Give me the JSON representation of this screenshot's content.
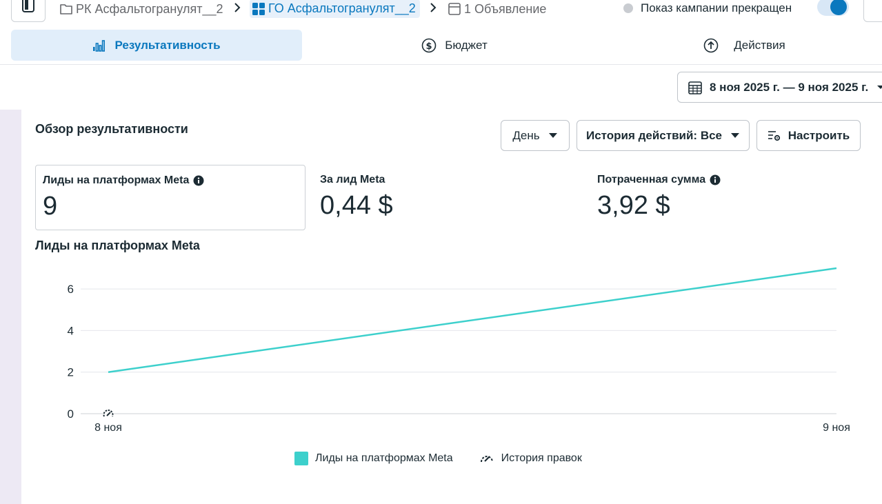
{
  "breadcrumb": {
    "campaign": "РК Асфальтогранулят__2",
    "adset": "ГО Асфальтогранулят__2",
    "ad": "1 Объявление"
  },
  "status": {
    "text": "Показ кампании прекращен",
    "dot_color": "#c9ccd1",
    "toggle_on": true
  },
  "tabs": [
    {
      "label": "Результативность",
      "active": true,
      "icon": "bar-chart-icon"
    },
    {
      "label": "Бюджет",
      "active": false,
      "icon": "dollar-circle-icon"
    },
    {
      "label": "Действия",
      "active": false,
      "icon": "arrow-up-circle-icon"
    }
  ],
  "date_range": "8 ноя 2025 г. — 9 ноя 2025 г.",
  "overview": {
    "title": "Обзор результативности",
    "period_select": "День",
    "history_select": "История действий: Все",
    "configure_label": "Настроить"
  },
  "metrics": [
    {
      "label": "Лиды на платформах Meta",
      "value": "9",
      "info": true,
      "selected": true
    },
    {
      "label": "За лид Meta",
      "value": "0,44 $",
      "info": false,
      "selected": false
    },
    {
      "label": "Потраченная сумма",
      "value": "3,92 $",
      "info": true,
      "selected": false
    }
  ],
  "chart_title": "Лиды на платформах Meta",
  "chart_data": {
    "type": "line",
    "x": [
      "8 ноя",
      "9 ноя"
    ],
    "series": [
      {
        "name": "Лиды на платформах Meta",
        "values": [
          2,
          7
        ],
        "color": "#3dd0cc"
      }
    ],
    "ylim": [
      0,
      7
    ],
    "yticks": [
      0,
      2,
      4,
      6
    ],
    "grid": true,
    "legend_position": "bottom-center",
    "annotations": [
      {
        "x": "8 ноя",
        "icon": "edit-history-icon"
      }
    ]
  },
  "legend": {
    "series_label": "Лиды на платформах Meta",
    "history_label": "История правок"
  },
  "colors": {
    "accent": "#0a78be",
    "active_tab_bg": "#e1eefa",
    "line": "#3dd0cc"
  }
}
